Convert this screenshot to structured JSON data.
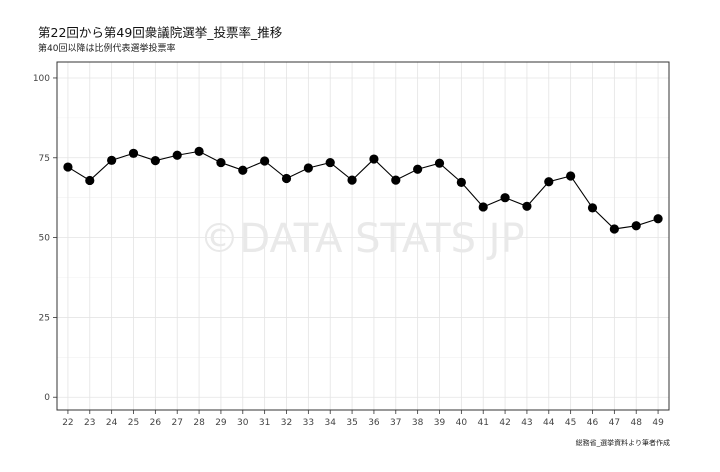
{
  "title": "第22回から第49回衆議院選挙_投票率_推移",
  "subtitle": "第40回以降は比例代表選挙投票率",
  "caption": "総務省_選挙資料より筆者作成",
  "watermark": "©DATA STATS JP",
  "chart_data": {
    "type": "line",
    "title": "第22回から第49回衆議院選挙_投票率_推移",
    "subtitle": "第40回以降は比例代表選挙投票率",
    "xlabel": "",
    "ylabel": "",
    "x": [
      "22",
      "23",
      "24",
      "25",
      "26",
      "27",
      "28",
      "29",
      "30",
      "31",
      "32",
      "33",
      "34",
      "35",
      "36",
      "37",
      "38",
      "39",
      "40",
      "41",
      "42",
      "43",
      "44",
      "45",
      "46",
      "47",
      "48",
      "49"
    ],
    "series": [
      {
        "values": [
          72.1,
          67.9,
          74.2,
          76.4,
          74.1,
          75.8,
          77.0,
          73.5,
          71.1,
          74.0,
          68.5,
          71.8,
          73.5,
          68.0,
          74.6,
          68.0,
          71.4,
          73.3,
          67.3,
          59.6,
          62.5,
          59.8,
          67.5,
          69.3,
          59.3,
          52.7,
          53.7,
          55.9
        ]
      }
    ],
    "ylim": [
      -4,
      105
    ],
    "yticks": [
      0,
      25,
      50,
      75,
      100
    ],
    "grid": true,
    "legend": "none",
    "colors": {
      "line": "#000000",
      "marker": "#000000",
      "grid": "#e4e4e4",
      "axis": "#333333",
      "watermark": "#e9e9e9"
    }
  }
}
